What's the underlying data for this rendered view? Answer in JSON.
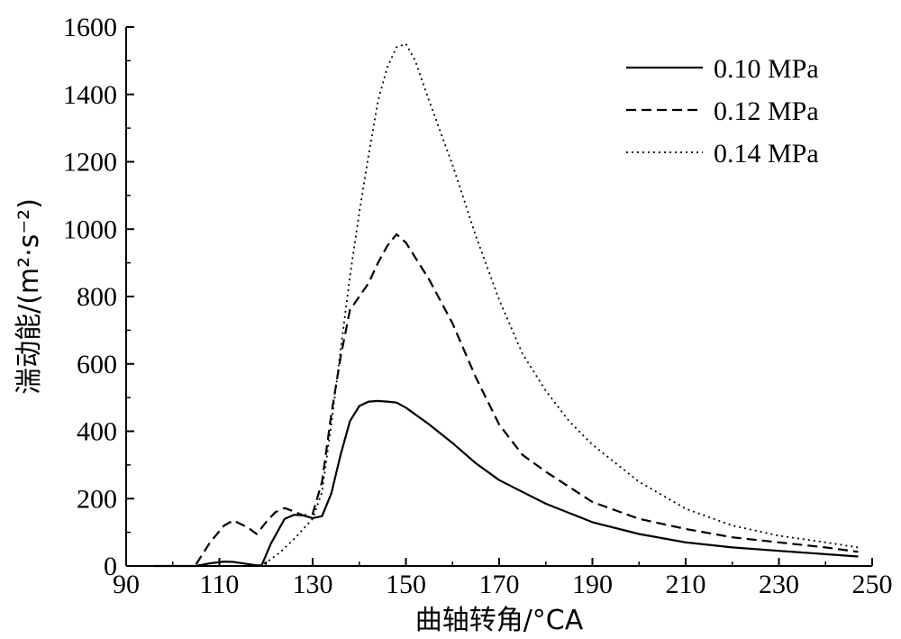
{
  "chart_data": {
    "type": "line",
    "title": "",
    "xlabel": "曲轴转角/°CA",
    "ylabel": "湍动能/(m²·s⁻²)",
    "xlim": [
      90,
      250
    ],
    "ylim": [
      0,
      1600
    ],
    "xticks": [
      90,
      110,
      130,
      150,
      170,
      190,
      210,
      230,
      250
    ],
    "yticks": [
      0,
      200,
      400,
      600,
      800,
      1000,
      1200,
      1400,
      1600
    ],
    "grid": false,
    "legend_position": "top-right",
    "series": [
      {
        "name": "0.10 MPa",
        "dash": "solid",
        "color": "#000000",
        "x": [
          96,
          100,
          105,
          108,
          111,
          113,
          116,
          119,
          121,
          124,
          126,
          128,
          130,
          132,
          134,
          136,
          138,
          140,
          142,
          144,
          146,
          148,
          150,
          155,
          160,
          165,
          170,
          175,
          180,
          190,
          200,
          210,
          220,
          230,
          240,
          247
        ],
        "y": [
          0,
          0,
          0,
          8,
          13,
          12,
          6,
          0,
          65,
          140,
          152,
          150,
          142,
          148,
          215,
          330,
          430,
          475,
          488,
          490,
          488,
          485,
          470,
          420,
          365,
          305,
          255,
          220,
          185,
          130,
          95,
          70,
          55,
          45,
          35,
          28
        ]
      },
      {
        "name": "0.12 MPa",
        "dash": "dashed",
        "color": "#000000",
        "x": [
          105,
          108,
          111,
          113,
          116,
          118,
          120,
          122,
          124,
          126,
          128,
          130,
          132,
          134,
          136,
          138,
          140,
          142,
          144,
          146,
          148,
          150,
          155,
          160,
          165,
          170,
          175,
          180,
          190,
          200,
          210,
          220,
          230,
          240,
          247
        ],
        "y": [
          5,
          70,
          120,
          135,
          115,
          95,
          130,
          160,
          172,
          162,
          150,
          155,
          250,
          450,
          620,
          760,
          800,
          840,
          900,
          950,
          985,
          960,
          850,
          720,
          560,
          420,
          330,
          280,
          190,
          140,
          110,
          85,
          70,
          55,
          42
        ]
      },
      {
        "name": "0.14 MPa",
        "dash": "dotted",
        "color": "#000000",
        "x": [
          115,
          118,
          120,
          123,
          126,
          128,
          130,
          132,
          134,
          136,
          138,
          140,
          142,
          144,
          146,
          148,
          150,
          152,
          155,
          160,
          165,
          170,
          175,
          180,
          185,
          190,
          200,
          210,
          220,
          230,
          240,
          247
        ],
        "y": [
          0,
          0,
          10,
          40,
          80,
          110,
          140,
          220,
          420,
          640,
          860,
          1050,
          1220,
          1380,
          1480,
          1540,
          1550,
          1500,
          1380,
          1190,
          980,
          790,
          630,
          520,
          430,
          360,
          250,
          170,
          120,
          90,
          70,
          55
        ]
      }
    ]
  }
}
